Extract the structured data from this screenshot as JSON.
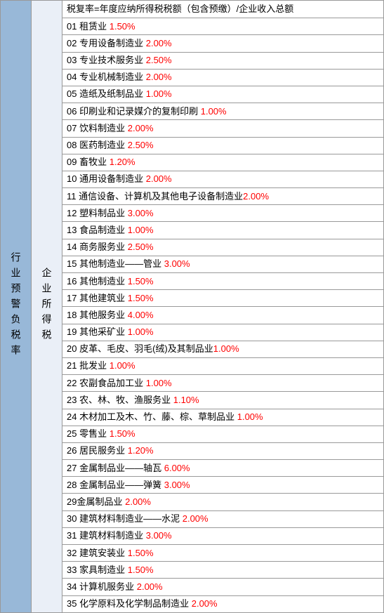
{
  "leftLabel": "行业预警负税率",
  "midLabel": "企业所得税",
  "header": "税复率=年度应纳所得税税额（包含预缴）/企业收入总额",
  "colors": {
    "leftBg": "#98b8d8",
    "midBg": "#eaeff7",
    "rightBg": "#ffffff",
    "border": "#999999",
    "rateColor": "#ff0000",
    "textColor": "#000000"
  },
  "rows": [
    {
      "idx": "01",
      "name": "租赁业",
      "rate": "1.50%",
      "sp": " "
    },
    {
      "idx": "02",
      "name": "专用设备制造业",
      "rate": "2.00%",
      "sp": " "
    },
    {
      "idx": "03",
      "name": "专业技术服务业",
      "rate": "2.50%",
      "sp": " "
    },
    {
      "idx": "04",
      "name": "专业机械制造业",
      "rate": "2.00%",
      "sp": " "
    },
    {
      "idx": "05",
      "name": "造纸及纸制品业",
      "rate": "1.00%",
      "sp": " "
    },
    {
      "idx": "06",
      "name": "印刷业和记录媒介的复制印刷",
      "rate": "1.00%",
      "sp": " "
    },
    {
      "idx": "07",
      "name": "饮料制造业",
      "rate": "2.00%",
      "sp": " "
    },
    {
      "idx": "08",
      "name": "医药制造业",
      "rate": "2.50%",
      "sp": " "
    },
    {
      "idx": "09",
      "name": "畜牧业",
      "rate": "1.20%",
      "sp": " "
    },
    {
      "idx": "10",
      "name": "通用设备制造业",
      "rate": "2.00%",
      "sp": " "
    },
    {
      "idx": "11",
      "name": "通信设备、计算机及其他电子设备制造业",
      "rate": "2.00%",
      "sp": ""
    },
    {
      "idx": "12",
      "name": "塑料制品业",
      "rate": "3.00%",
      "sp": " "
    },
    {
      "idx": "13",
      "name": "食品制造业",
      "rate": "1.00%",
      "sp": " "
    },
    {
      "idx": "14",
      "name": "商务服务业",
      "rate": "2.50%",
      "sp": " "
    },
    {
      "idx": "15",
      "name": "其他制造业——管业",
      "rate": "3.00%",
      "sp": " "
    },
    {
      "idx": "16",
      "name": "其他制造业",
      "rate": "1.50%",
      "sp": " "
    },
    {
      "idx": "17",
      "name": "其他建筑业",
      "rate": "1.50%",
      "sp": " "
    },
    {
      "idx": "18",
      "name": "其他服务业",
      "rate": "4.00%",
      "sp": " "
    },
    {
      "idx": "19",
      "name": "其他采矿业",
      "rate": "1.00%",
      "sp": " "
    },
    {
      "idx": "20",
      "name": "皮革、毛皮、羽毛(绒)及其制品业",
      "rate": "1.00%",
      "sp": ""
    },
    {
      "idx": "21",
      "name": "批发业",
      "rate": "1.00%",
      "sp": " "
    },
    {
      "idx": "22",
      "name": "农副食品加工业",
      "rate": "1.00%",
      "sp": " "
    },
    {
      "idx": "23",
      "name": "农、林、牧、渔服务业",
      "rate": "1.10%",
      "sp": " "
    },
    {
      "idx": "24",
      "name": "木材加工及木、竹、藤、棕、草制品业",
      "rate": "1.00%",
      "sp": " "
    },
    {
      "idx": "25",
      "name": "零售业",
      "rate": "1.50%",
      "sp": " "
    },
    {
      "idx": "26",
      "name": "居民服务业",
      "rate": "1.20%",
      "sp": " "
    },
    {
      "idx": "27",
      "name": "金属制品业——轴瓦",
      "rate": "6.00%",
      "sp": " "
    },
    {
      "idx": "28",
      "name": "金属制品业——弹簧",
      "rate": "3.00%",
      "sp": " "
    },
    {
      "idx": "29",
      "name": "金属制品业",
      "rate": "2.00%",
      "sp": " ",
      "nosep": true
    },
    {
      "idx": "30",
      "name": "建筑材料制造业——水泥",
      "rate": "2.00%",
      "sp": " "
    },
    {
      "idx": "31",
      "name": "建筑材料制造业",
      "rate": "3.00%",
      "sp": " "
    },
    {
      "idx": "32",
      "name": "建筑安装业",
      "rate": "1.50%",
      "sp": " "
    },
    {
      "idx": "33",
      "name": "家具制造业",
      "rate": "1.50%",
      "sp": " "
    },
    {
      "idx": "34",
      "name": "计算机服务业",
      "rate": "2.00%",
      "sp": " "
    },
    {
      "idx": "35",
      "name": "化学原料及化学制品制造业",
      "rate": "2.00%",
      "sp": " "
    }
  ]
}
